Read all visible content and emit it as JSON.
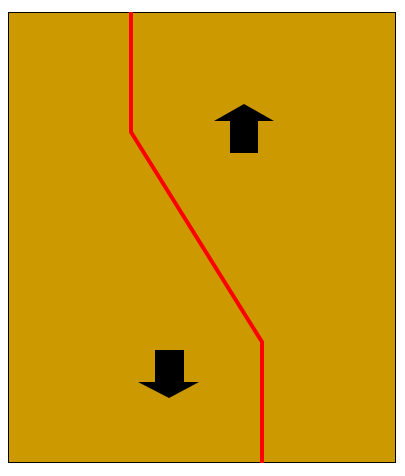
{
  "diagram": {
    "background_color": "#ffffff",
    "panel": {
      "fill_color": "#CC9900",
      "border_color": "#000000"
    },
    "fault_line": {
      "color": "#FF0000"
    },
    "arrows": [
      {
        "direction": "up",
        "color": "#000000"
      },
      {
        "direction": "down",
        "color": "#000000"
      }
    ]
  }
}
